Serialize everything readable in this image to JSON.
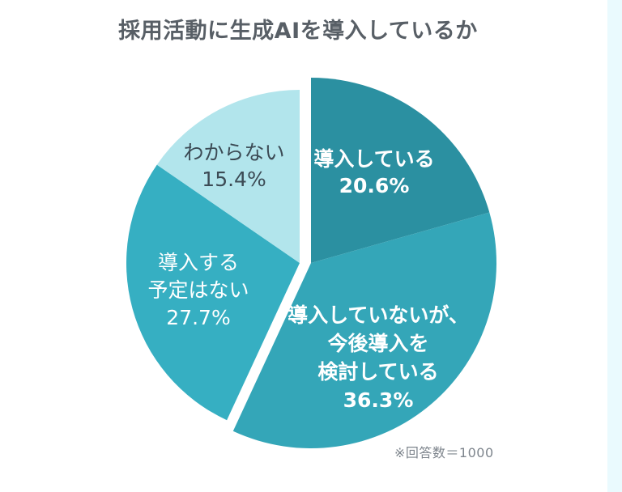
{
  "page": {
    "background_color": "#ffffff",
    "right_strip_color": "#eafafe"
  },
  "chart_data": {
    "type": "pie",
    "title": "採用活動に生成AIを導入しているか",
    "note": "※回答数＝1000",
    "legend_position": "none",
    "label_style": "inside-slices",
    "slices": [
      {
        "label": "導入している",
        "value": 20.6,
        "pct_label": "20.6%",
        "color": "#2b90a1",
        "text_color": "#ffffff",
        "lines": [
          "導入している"
        ]
      },
      {
        "label": "導入していないが、今後導入を検討している",
        "value": 36.3,
        "pct_label": "36.3%",
        "color": "#34a6b8",
        "text_color": "#ffffff",
        "lines": [
          "導入していないが、",
          "今後導入を",
          "検討している"
        ]
      },
      {
        "label": "導入する予定はない",
        "value": 27.7,
        "pct_label": "27.7%",
        "color": "#36afc2",
        "text_color": "#ffffff",
        "lines": [
          "導入する",
          "予定はない"
        ]
      },
      {
        "label": "わからない",
        "value": 15.4,
        "pct_label": "15.4%",
        "color": "#b2e5ec",
        "text_color": "#3c4b55",
        "lines": [
          "わからない"
        ]
      }
    ]
  }
}
